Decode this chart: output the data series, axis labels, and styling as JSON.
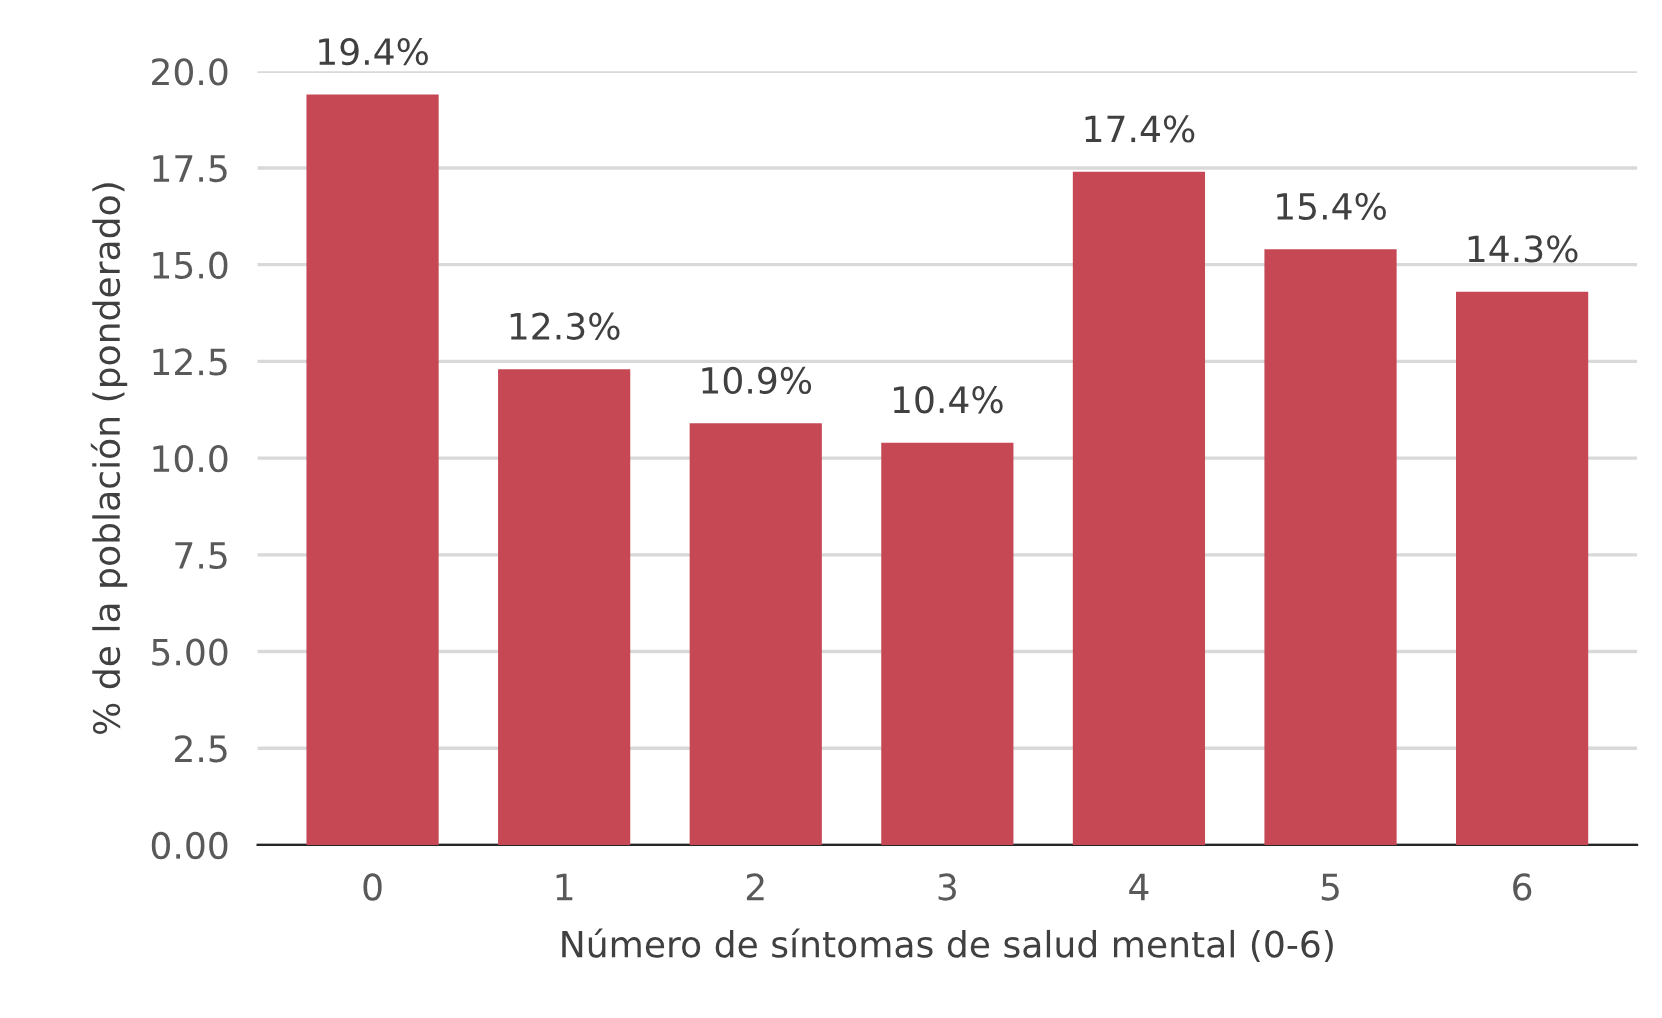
{
  "chart_data": {
    "type": "bar",
    "xlabel": "Número de síntomas de salud mental (0-6)",
    "ylabel": "% de la población (ponderado)",
    "categories": [
      "0",
      "1",
      "2",
      "3",
      "4",
      "5",
      "6"
    ],
    "values": [
      19.4,
      12.3,
      10.9,
      10.4,
      17.4,
      15.4,
      14.3
    ],
    "value_labels": [
      "19.4%",
      "12.3%",
      "10.9%",
      "10.4%",
      "17.4%",
      "15.4%",
      "14.3%"
    ],
    "color": "#c54854",
    "ylim": [
      0,
      20
    ],
    "yticks": [
      {
        "value": 0,
        "label": "0.00"
      },
      {
        "value": 2.5,
        "label": "2.5"
      },
      {
        "value": 5,
        "label": "5.00"
      },
      {
        "value": 7.5,
        "label": "7.5"
      },
      {
        "value": 10,
        "label": "10.0"
      },
      {
        "value": 12.5,
        "label": "12.5"
      },
      {
        "value": 15,
        "label": "15.0"
      },
      {
        "value": 17.5,
        "label": "17.5"
      },
      {
        "value": 20,
        "label": "20.0"
      }
    ],
    "grid": "y",
    "legend": false
  }
}
